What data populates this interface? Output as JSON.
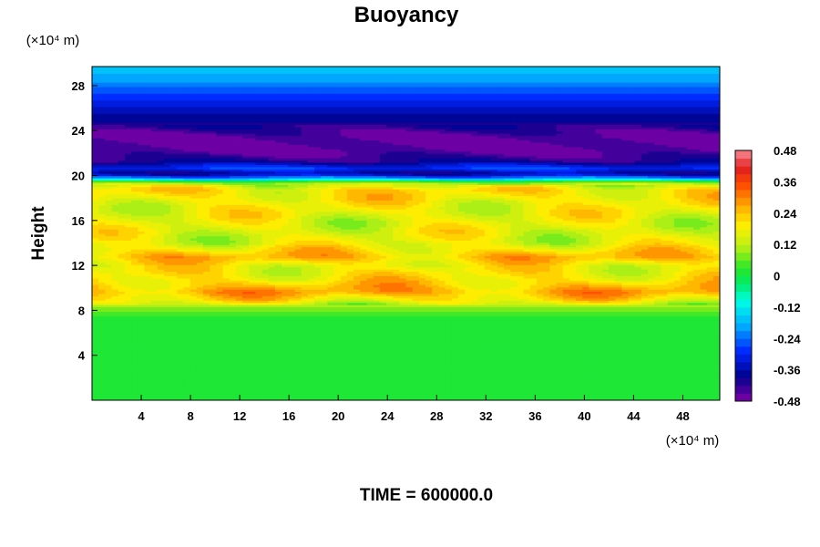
{
  "chart_data": {
    "type": "heatmap",
    "title": "Buoyancy",
    "ylabel": "Height",
    "xlabel": "",
    "x_unit": "(×10⁴ m)",
    "y_unit": "(×10⁴ m)",
    "xlim": [
      0,
      51
    ],
    "ylim": [
      0,
      29.7
    ],
    "x_ticks": [
      4,
      8,
      12,
      16,
      20,
      24,
      28,
      32,
      36,
      40,
      44,
      48
    ],
    "y_ticks": [
      4,
      8,
      12,
      16,
      20,
      24,
      28
    ],
    "colorbar": {
      "range": [
        -0.48,
        0.48
      ],
      "step": 0.03,
      "tick_values": [
        0.48,
        0.36,
        0.24,
        0.12,
        0,
        -0.12,
        -0.24,
        -0.36,
        -0.48
      ],
      "tick_labels": [
        "0.48",
        "0.36",
        "0.24",
        "0.12",
        "0",
        "-0.12",
        "-0.24",
        "-0.36",
        "-0.48"
      ]
    },
    "vertical_profile": [
      {
        "height": 0,
        "value": 0.0
      },
      {
        "height": 7.5,
        "value": 0.02
      },
      {
        "height": 8.3,
        "value": 0.09
      },
      {
        "height": 9.0,
        "value": 0.2
      },
      {
        "height": 9.7,
        "value": 0.27
      },
      {
        "height": 10.8,
        "value": 0.2
      },
      {
        "height": 12.0,
        "value": 0.18
      },
      {
        "height": 12.8,
        "value": 0.25
      },
      {
        "height": 14.0,
        "value": 0.16
      },
      {
        "height": 16.0,
        "value": 0.16
      },
      {
        "height": 17.5,
        "value": 0.18
      },
      {
        "height": 18.8,
        "value": 0.21
      },
      {
        "height": 19.4,
        "value": 0.1
      },
      {
        "height": 19.8,
        "value": -0.2
      },
      {
        "height": 20.2,
        "value": -0.38
      },
      {
        "height": 20.7,
        "value": -0.28
      },
      {
        "height": 21.3,
        "value": -0.4
      },
      {
        "height": 22.2,
        "value": -0.46
      },
      {
        "height": 23.5,
        "value": -0.46
      },
      {
        "height": 24.5,
        "value": -0.4
      },
      {
        "height": 26.0,
        "value": -0.34
      },
      {
        "height": 27.5,
        "value": -0.26
      },
      {
        "height": 28.5,
        "value": -0.2
      },
      {
        "height": 29.7,
        "value": -0.16
      }
    ],
    "footer": "TIME = 600000.0"
  }
}
